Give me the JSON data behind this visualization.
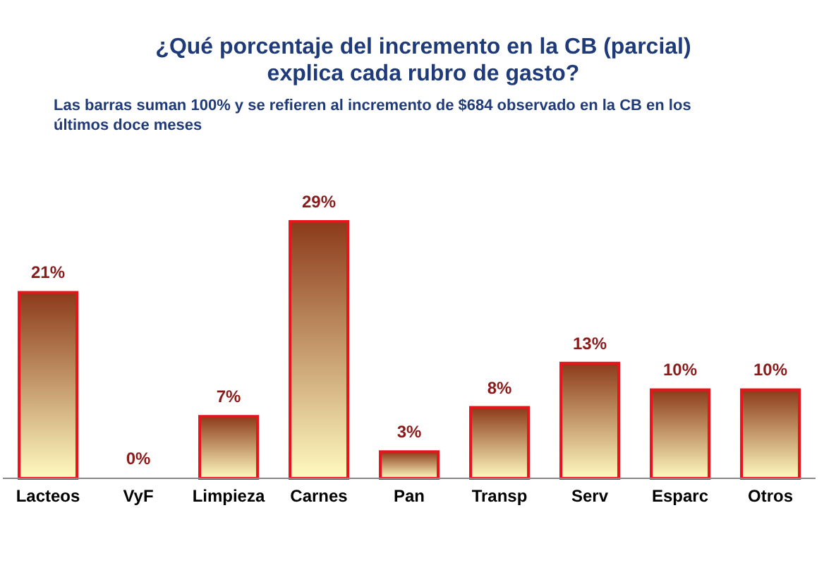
{
  "chart_data": {
    "type": "bar",
    "title": "¿Qué porcentaje del incremento en la CB (parcial) explica cada rubro de gasto?",
    "subtitle": "Las barras suman 100% y se refieren al incremento de $684 observado en la CB en los últimos doce meses",
    "categories": [
      "Lacteos",
      "VyF",
      "Limpieza",
      "Carnes",
      "Pan",
      "Transp",
      "Serv",
      "Esparc",
      "Otros"
    ],
    "values": [
      21,
      0,
      7,
      29,
      3,
      8,
      13,
      10,
      10
    ],
    "value_labels": [
      "21%",
      "0%",
      "7%",
      "29%",
      "3%",
      "8%",
      "13%",
      "10%",
      "10%"
    ],
    "color": "#e8141c"
  }
}
